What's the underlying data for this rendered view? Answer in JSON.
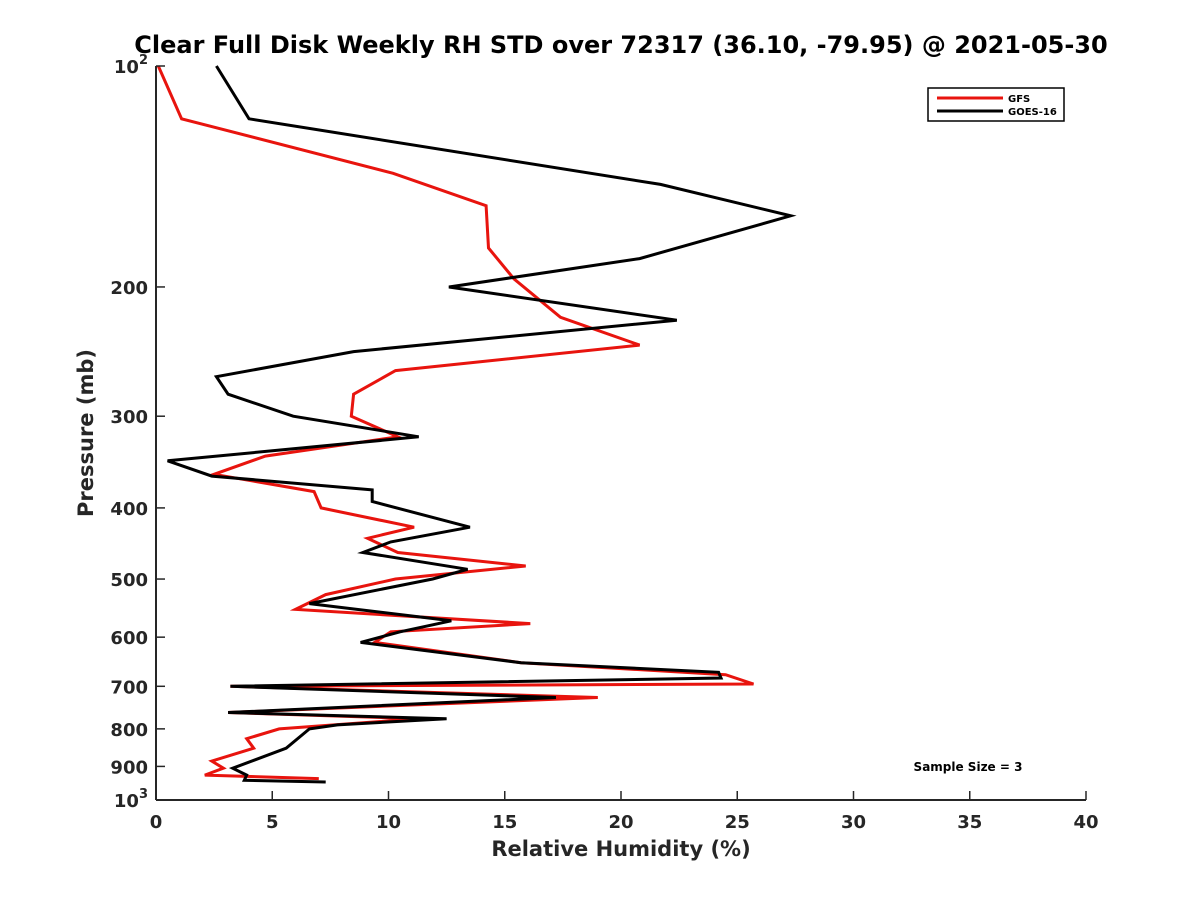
{
  "chart_data": {
    "type": "line",
    "title": "Clear Full Disk Weekly RH STD over 72317 (36.10, -79.95) @ 2021-05-30",
    "xlabel": "Relative Humidity (%)",
    "ylabel": "Pressure (mb)",
    "xlim": [
      0,
      40
    ],
    "ylim": [
      100,
      1000
    ],
    "y_scale": "log",
    "y_reversed": true,
    "x_ticks": [
      0,
      5,
      10,
      15,
      20,
      25,
      30,
      35,
      40
    ],
    "y_ticks": [
      100,
      200,
      300,
      400,
      500,
      600,
      700,
      800,
      900,
      1000
    ],
    "y_tick_labels": [
      {
        "base": "10",
        "sup": "2"
      },
      {
        "base": "200",
        "sup": ""
      },
      {
        "base": "300",
        "sup": ""
      },
      {
        "base": "400",
        "sup": ""
      },
      {
        "base": "500",
        "sup": ""
      },
      {
        "base": "600",
        "sup": ""
      },
      {
        "base": "700",
        "sup": ""
      },
      {
        "base": "800",
        "sup": ""
      },
      {
        "base": "900",
        "sup": ""
      },
      {
        "base": "10",
        "sup": "3"
      }
    ],
    "grid": false,
    "legend_position": "top-right",
    "annotation": "Sample Size = 3",
    "series": [
      {
        "name": "GFS",
        "color": "#e8140e",
        "points": [
          [
            0.1,
            100
          ],
          [
            1.1,
            118
          ],
          [
            10.2,
            140
          ],
          [
            14.2,
            155
          ],
          [
            14.3,
            177
          ],
          [
            15.4,
            195
          ],
          [
            17.4,
            220
          ],
          [
            20.8,
            240
          ],
          [
            10.3,
            260
          ],
          [
            8.5,
            280
          ],
          [
            8.4,
            300
          ],
          [
            10.4,
            320
          ],
          [
            4.7,
            340
          ],
          [
            2.5,
            360
          ],
          [
            6.8,
            380
          ],
          [
            7.1,
            400
          ],
          [
            11.1,
            425
          ],
          [
            9.1,
            440
          ],
          [
            10.4,
            460
          ],
          [
            15.9,
            480
          ],
          [
            10.3,
            500
          ],
          [
            7.3,
            525
          ],
          [
            6.0,
            550
          ],
          [
            16.1,
            575
          ],
          [
            10.1,
            590
          ],
          [
            9.4,
            610
          ],
          [
            15.7,
            650
          ],
          [
            24.5,
            675
          ],
          [
            25.7,
            695
          ],
          [
            3.2,
            700
          ],
          [
            19.0,
            725
          ],
          [
            3.1,
            760
          ],
          [
            11.3,
            775
          ],
          [
            5.3,
            800
          ],
          [
            3.9,
            825
          ],
          [
            4.2,
            850
          ],
          [
            2.4,
            885
          ],
          [
            2.9,
            905
          ],
          [
            2.1,
            925
          ],
          [
            7.0,
            935
          ]
        ]
      },
      {
        "name": "GOES-16",
        "color": "#000000",
        "points": [
          [
            2.6,
            100
          ],
          [
            4.0,
            118
          ],
          [
            21.7,
            145
          ],
          [
            27.3,
            160
          ],
          [
            20.8,
            183
          ],
          [
            12.6,
            200
          ],
          [
            22.4,
            222
          ],
          [
            8.5,
            245
          ],
          [
            2.6,
            265
          ],
          [
            3.1,
            280
          ],
          [
            5.9,
            300
          ],
          [
            11.3,
            320
          ],
          [
            0.5,
            345
          ],
          [
            2.4,
            362
          ],
          [
            9.3,
            378
          ],
          [
            9.3,
            392
          ],
          [
            13.5,
            425
          ],
          [
            10.1,
            445
          ],
          [
            8.9,
            460
          ],
          [
            13.4,
            485
          ],
          [
            11.9,
            500
          ],
          [
            6.6,
            540
          ],
          [
            12.7,
            570
          ],
          [
            10.5,
            590
          ],
          [
            8.8,
            610
          ],
          [
            15.7,
            650
          ],
          [
            24.2,
            670
          ],
          [
            24.3,
            682
          ],
          [
            3.2,
            700
          ],
          [
            17.2,
            725
          ],
          [
            3.1,
            760
          ],
          [
            12.5,
            775
          ],
          [
            7.8,
            790
          ],
          [
            6.6,
            800
          ],
          [
            5.6,
            850
          ],
          [
            3.3,
            905
          ],
          [
            3.9,
            925
          ],
          [
            3.8,
            940
          ],
          [
            7.3,
            945
          ]
        ]
      }
    ]
  }
}
